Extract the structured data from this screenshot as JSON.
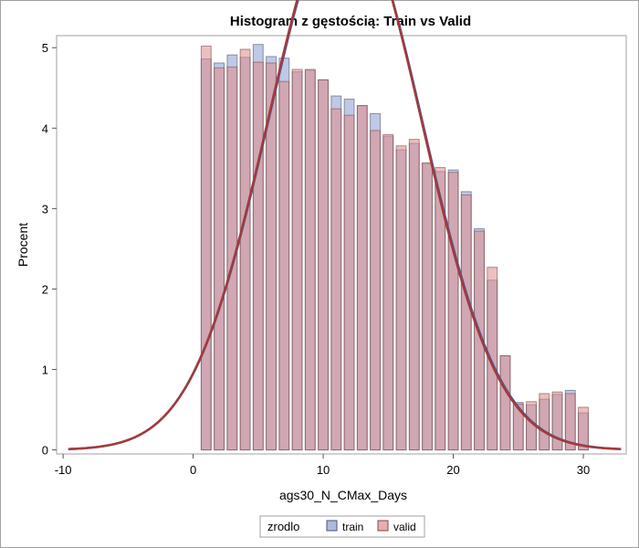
{
  "chart_data": {
    "type": "bar",
    "title": "Histogram z gęstością: Train vs Valid",
    "xlabel": "ags30_N_CMax_Days",
    "ylabel": "Procent",
    "xlim": [
      -10.5,
      33.3
    ],
    "ylim": [
      -0.05,
      5.15
    ],
    "xticks": [
      -10,
      0,
      10,
      20,
      30
    ],
    "yticks": [
      0,
      1,
      2,
      3,
      4,
      5
    ],
    "bin_width": 1,
    "legend": {
      "title": "zrodlo",
      "position": "bottom"
    },
    "series": [
      {
        "name": "train",
        "color": "#8b9dcf",
        "x": [
          1,
          2,
          3,
          4,
          5,
          6,
          7,
          8,
          9,
          10,
          11,
          12,
          13,
          14,
          15,
          16,
          17,
          18,
          19,
          20,
          21,
          22,
          23,
          24,
          25,
          26,
          27,
          28,
          29,
          30
        ],
        "values": [
          4.86,
          4.81,
          4.91,
          4.88,
          5.04,
          4.89,
          4.87,
          4.7,
          4.72,
          4.6,
          4.4,
          4.36,
          4.28,
          4.18,
          3.9,
          3.73,
          3.81,
          3.56,
          3.46,
          3.48,
          3.21,
          2.75,
          2.11,
          1.17,
          0.59,
          0.56,
          0.63,
          0.69,
          0.74,
          0.46
        ],
        "density": {
          "mean": 11.7,
          "sd": 5.9
        }
      },
      {
        "name": "valid",
        "color": "#df8a8a",
        "x": [
          1,
          2,
          3,
          4,
          5,
          6,
          7,
          8,
          9,
          10,
          11,
          12,
          13,
          14,
          15,
          16,
          17,
          18,
          19,
          20,
          21,
          22,
          23,
          24,
          25,
          26,
          27,
          28,
          29,
          30
        ],
        "values": [
          5.02,
          4.75,
          4.76,
          4.98,
          4.82,
          4.81,
          4.58,
          4.73,
          4.73,
          4.6,
          4.24,
          4.16,
          4.28,
          3.97,
          3.92,
          3.78,
          3.86,
          3.57,
          3.51,
          3.45,
          3.17,
          2.72,
          2.27,
          1.17,
          0.57,
          0.6,
          0.7,
          0.72,
          0.7,
          0.53
        ],
        "density": {
          "mean": 11.65,
          "sd": 5.88
        }
      }
    ]
  }
}
